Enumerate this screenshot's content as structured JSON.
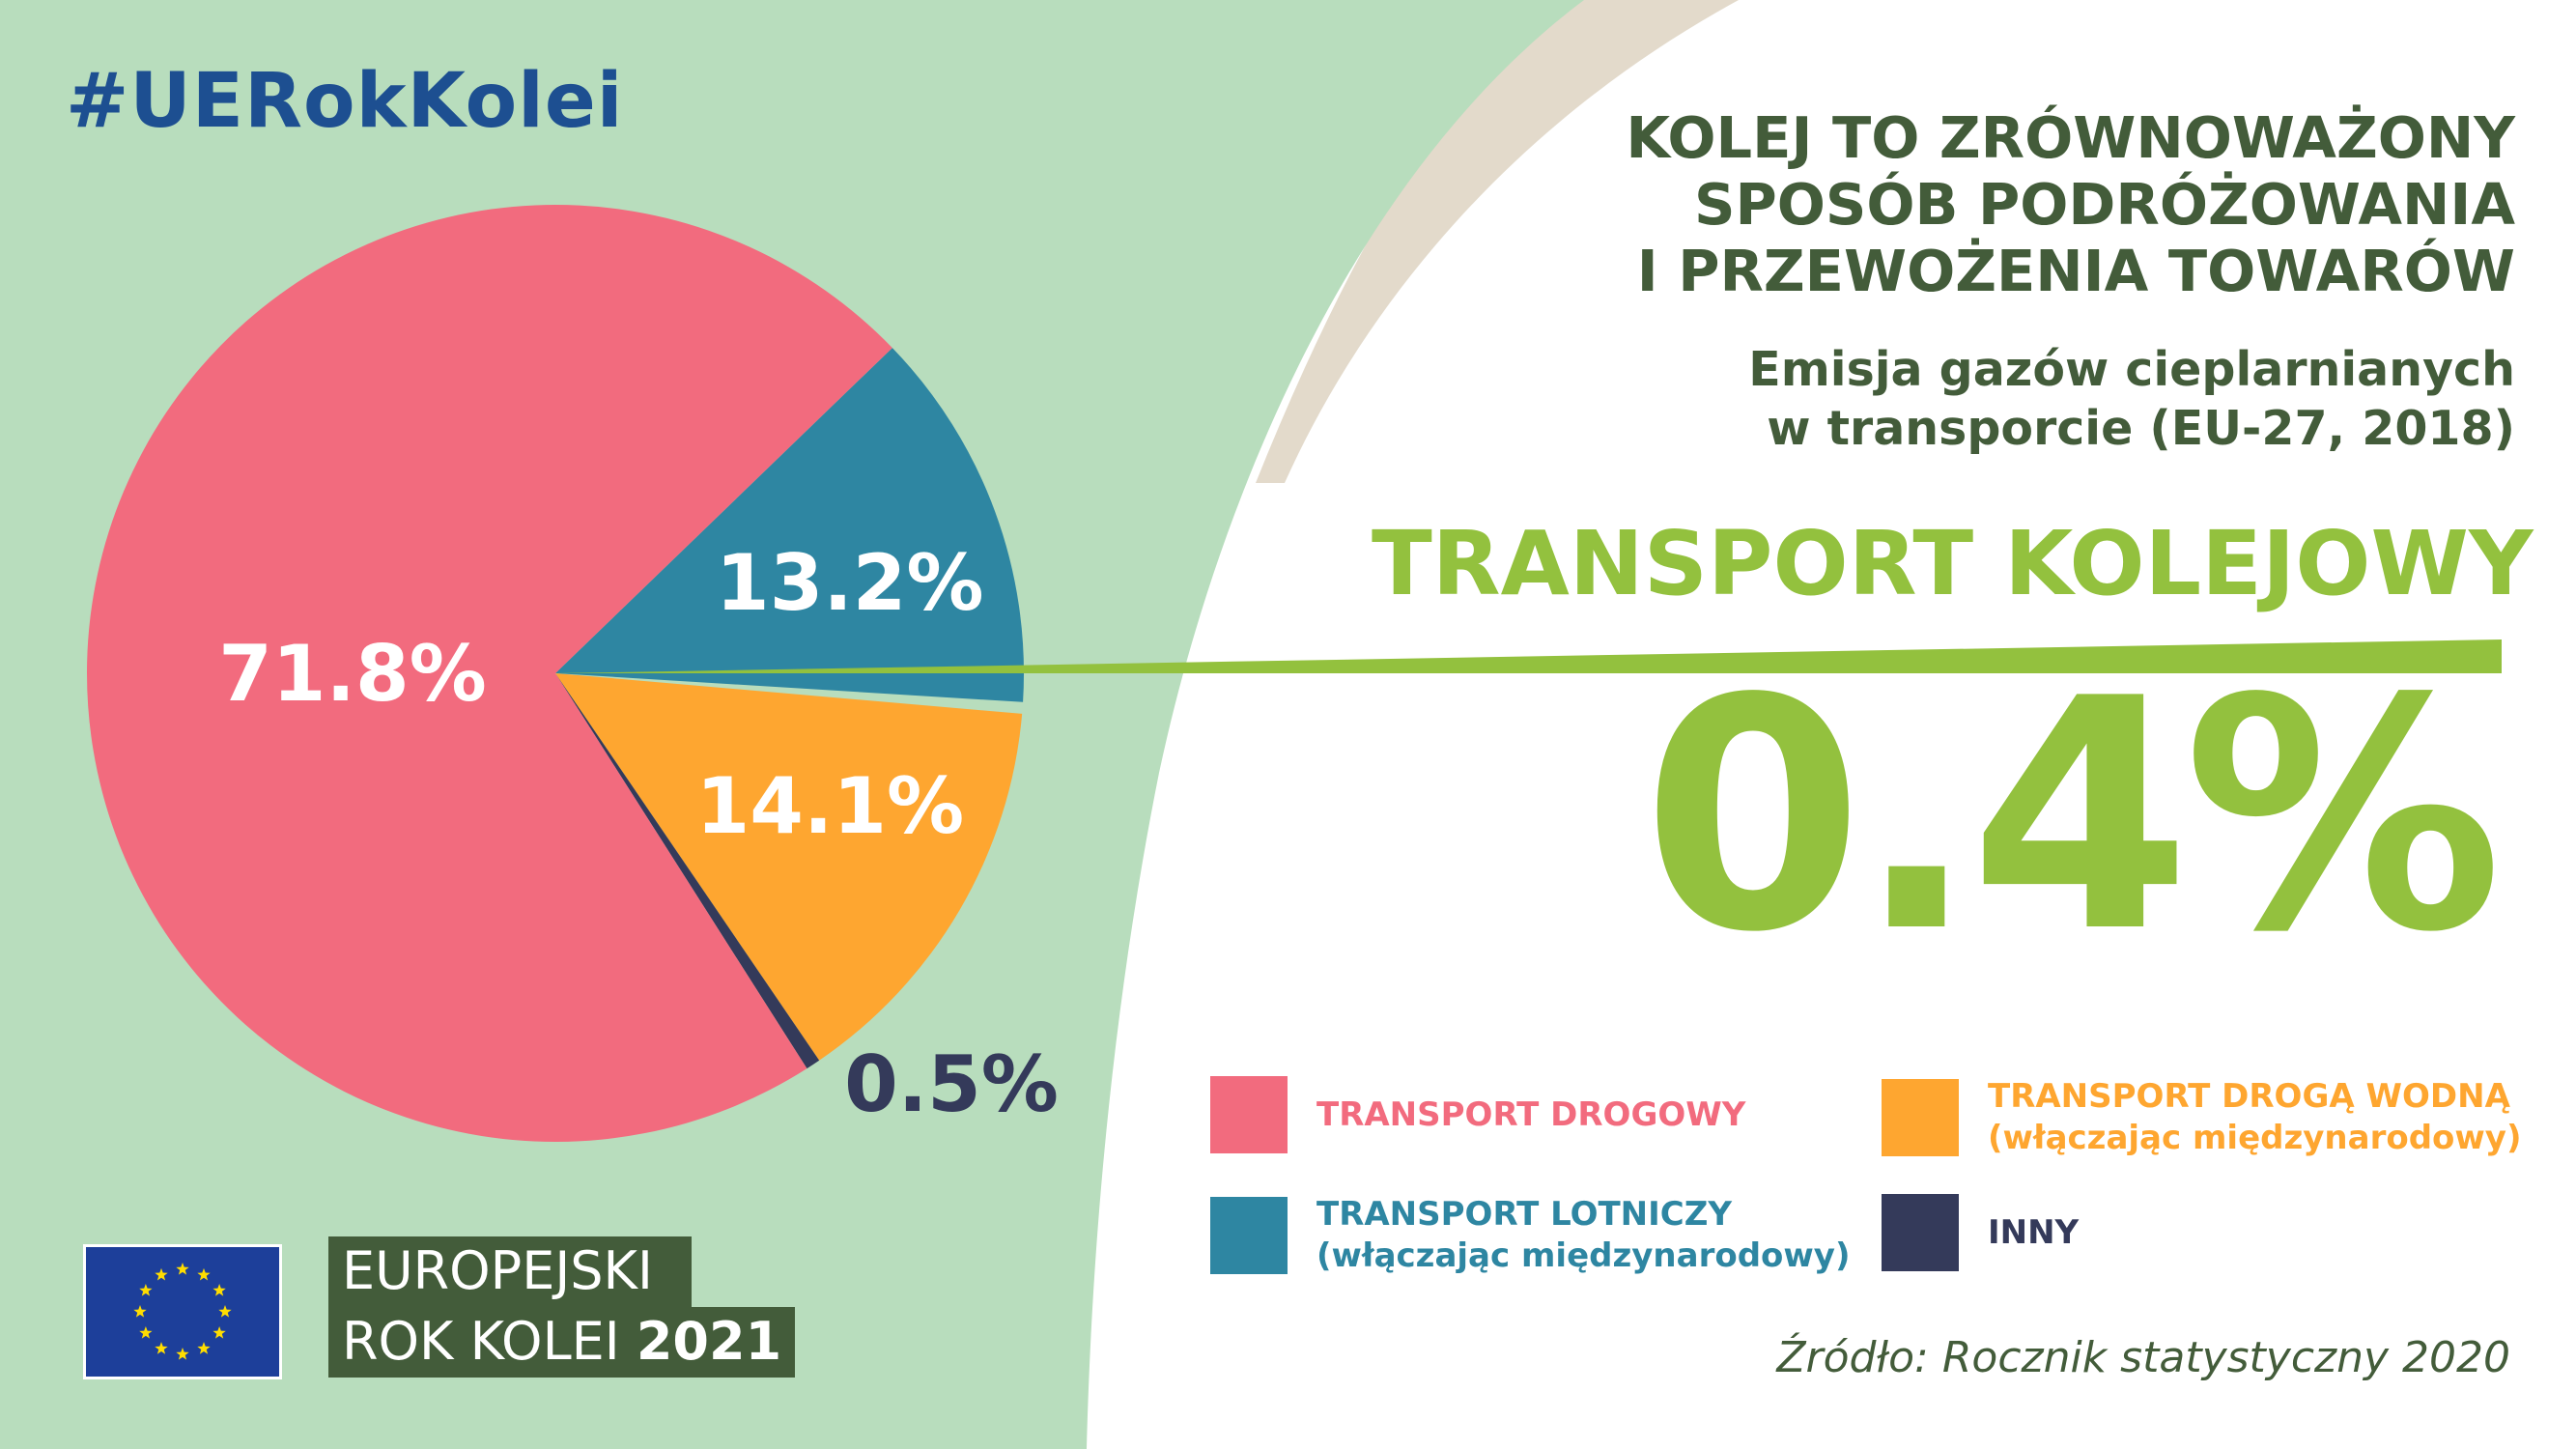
{
  "hashtag": "#UERokKolei",
  "title_lines": [
    "KOLEJ TO ZRÓWNOWAŻONY",
    "SPOSÓB PODRÓŻOWANIA",
    "I PRZEWOŻENIA TOWARÓW"
  ],
  "subtitle_lines": [
    "Emisja gazów cieplarnianych",
    "w transporcie (EU-27, 2018)"
  ],
  "highlight": {
    "label": "TRANSPORT KOLEJOWY",
    "value": "0.4%"
  },
  "chart_data": {
    "type": "pie",
    "title": "Emisja gazów cieplarnianych w transporcie (EU-27, 2018)",
    "slices": [
      {
        "label": "13.2%",
        "value": 13.2,
        "color": "#2e86a2"
      },
      {
        "label": "0.4%",
        "value": 0.4,
        "color": "#93c13e"
      },
      {
        "label": "14.1%",
        "value": 14.1,
        "color": "#fea630"
      },
      {
        "label": "0.5%",
        "value": 0.5,
        "color": "#343a5a"
      },
      {
        "label": "71.8%",
        "value": 71.8,
        "color": "#f26b7e"
      }
    ],
    "legend": [
      {
        "lines": [
          "TRANSPORT DROGOWY"
        ],
        "color": "#f26b7e"
      },
      {
        "lines": [
          "TRANSPORT DROGĄ WODNĄ",
          "(włączając międzynarodowy)"
        ],
        "color": "#fea630"
      },
      {
        "lines": [
          "TRANSPORT LOTNICZY",
          "(włączając międzynarodowy)"
        ],
        "color": "#2e86a2"
      },
      {
        "lines": [
          "INNY"
        ],
        "color": "#343a5a"
      }
    ]
  },
  "source": "Źródło: Rocznik statystyczny 2020",
  "footer": {
    "line1": "EUROPEJSKI",
    "line2_prefix": "ROK KOLEI ",
    "line2_year": "2021"
  },
  "colors": {
    "background_green": "#b8ddbd",
    "beige_arc": "#e3dacb",
    "dark_green": "#435c3a",
    "accent_green": "#93c13e"
  }
}
